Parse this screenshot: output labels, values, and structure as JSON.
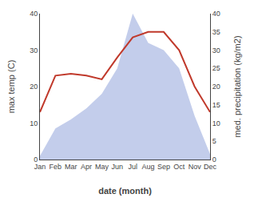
{
  "chart_data": {
    "type": "line",
    "xlabel": "date (month)",
    "ylabel": "max temp (C)",
    "y2label": "med. precipitation (kg/m2)",
    "categories": [
      "Jan",
      "Feb",
      "Mar",
      "Apr",
      "May",
      "Jun",
      "Jul",
      "Aug",
      "Sep",
      "Oct",
      "Nov",
      "Dec"
    ],
    "series": [
      {
        "type": "area",
        "axis": "y2",
        "color": "#b8c4e8",
        "values": [
          1.0,
          8.5,
          11.0,
          14.0,
          18.0,
          25.0,
          40.0,
          32.0,
          30.0,
          25.0,
          12.0,
          1.5
        ]
      },
      {
        "type": "line",
        "axis": "y",
        "color": "#c0392b",
        "values": [
          13.0,
          23.0,
          23.5,
          23.0,
          22.0,
          28.0,
          33.5,
          35.0,
          35.0,
          30.0,
          20.0,
          13.0
        ]
      }
    ],
    "ylim": [
      0,
      40
    ],
    "yticks": [
      0,
      10,
      20,
      30,
      40
    ],
    "y2lim": [
      0,
      40
    ],
    "y2ticks": [
      0,
      5,
      10,
      15,
      20,
      25,
      30,
      35,
      40
    ],
    "grid": false
  }
}
